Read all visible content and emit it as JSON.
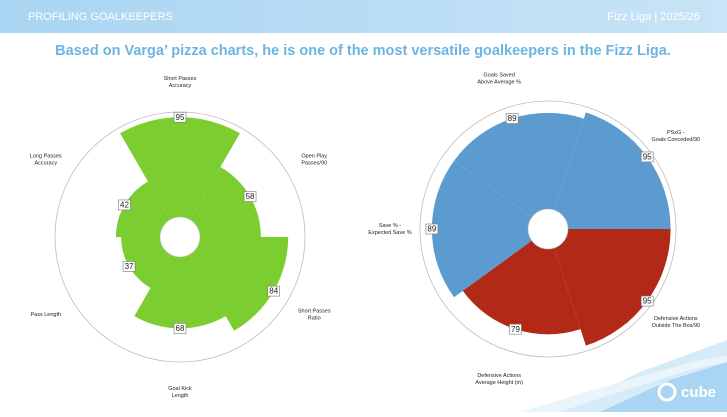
{
  "header": {
    "title": "PROFILING GOALKEEPERS",
    "right": "Fizz Liga | 2025/26"
  },
  "headline": "Based on Varga’ pizza charts, he is one of the most versatile goalkeepers in the Fizz Liga.",
  "logo": "cube",
  "chart_data": [
    {
      "type": "pizza",
      "ylim": [
        0,
        100
      ],
      "categories": [
        [
          "Short Passes",
          "Accuracy"
        ],
        [
          "Open Play",
          "Passes/90"
        ],
        [
          "Short Passes",
          "Ratio"
        ],
        [
          "Goal Kick",
          "Length"
        ],
        [
          "Pass Length"
        ],
        [
          "Long Passes",
          "Accuracy"
        ]
      ],
      "values": [
        95,
        58,
        84,
        68,
        37,
        42
      ],
      "colors": [
        "#7ccd2f",
        "#7ccd2f",
        "#7ccd2f",
        "#7ccd2f",
        "#7ccd2f",
        "#7ccd2f"
      ]
    },
    {
      "type": "pizza",
      "ylim": [
        0,
        100
      ],
      "categories": [
        [
          "Save % -",
          "Expected Save %"
        ],
        [
          "Goals Saved",
          "Above Average %"
        ],
        [
          "PSxG -",
          "Goals Conceded/90"
        ],
        [
          "Defensive Actions",
          "Outside The Box/90"
        ],
        [
          "Defensive Actions",
          "Average Height (m)"
        ]
      ],
      "values": [
        89,
        89,
        95,
        95,
        79
      ],
      "colors": [
        "#5b9bd0",
        "#5b9bd0",
        "#5b9bd0",
        "#b22a17",
        "#b22a17"
      ]
    }
  ]
}
